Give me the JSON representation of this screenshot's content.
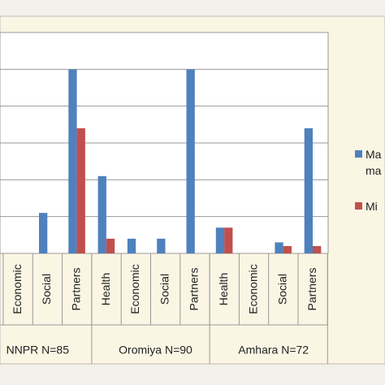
{
  "chart_data": {
    "type": "bar",
    "categories": [
      null,
      "Economic",
      "Social",
      "Partners",
      "Health",
      "Economic",
      "Social",
      "Partners",
      "Health",
      "Economic",
      "Social",
      "Partners"
    ],
    "groups": [
      "NNPR N=85",
      "Oromiya N=90",
      "Amhara N=72"
    ],
    "series": [
      {
        "name": "Ma ma",
        "color": "#4f81bd",
        "values": [
          null,
          0,
          11,
          50,
          21,
          4,
          4,
          50,
          7,
          0,
          3,
          34
        ]
      },
      {
        "name": "Mi",
        "color": "#c0504d",
        "values": [
          null,
          0,
          0,
          34,
          4,
          0,
          0,
          0,
          7,
          0,
          2,
          2
        ]
      }
    ],
    "ylim": [
      0,
      60
    ],
    "yticks": [
      0,
      10,
      20,
      30,
      40,
      50,
      60
    ],
    "grid": true
  }
}
